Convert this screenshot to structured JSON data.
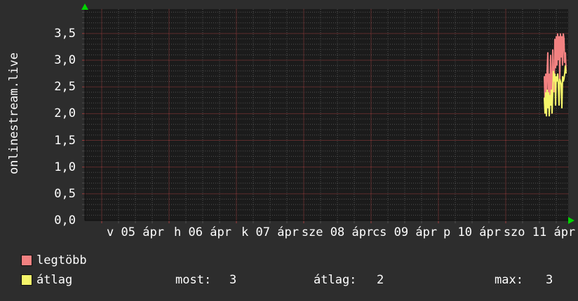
{
  "colors": {
    "background": "#2d2d2d",
    "plot_background": "#1b1b1b",
    "grid_minor": "#4f4f4f",
    "grid_major": "#9e3d3d",
    "axis": "#0d0d0d",
    "arrow": "#00d400",
    "text": "#ffffff",
    "legtobb": "#f28181",
    "atlag": "#f5f56a"
  },
  "legend": [
    {
      "label": "legtöbb",
      "color": "#f28181"
    },
    {
      "label": "átlag",
      "color": "#f5f56a"
    }
  ],
  "stats": {
    "most_label": "most:",
    "most_value": "3",
    "atlag_label": "átlag:",
    "atlag_value": "2",
    "max_label": "max:",
    "max_value": "3"
  },
  "chart_data": {
    "type": "line",
    "title": "onlinestream.live",
    "ylabel": "onlinestream.live",
    "xlabel": "",
    "ylim": [
      0,
      3.95
    ],
    "grid": "dotted, minor every 0.1 (gray) / major every 0.5 (red); x minor every 6h, major every day",
    "legend_position": "bottom-left",
    "y_ticks": [
      {
        "value": 0.0,
        "label": "0,0"
      },
      {
        "value": 0.5,
        "label": "0,5"
      },
      {
        "value": 1.0,
        "label": "1,0"
      },
      {
        "value": 1.5,
        "label": "1,5"
      },
      {
        "value": 2.0,
        "label": "2,0"
      },
      {
        "value": 2.5,
        "label": "2,5"
      },
      {
        "value": 3.0,
        "label": "3,0"
      },
      {
        "value": 3.5,
        "label": "3,5"
      }
    ],
    "x_ticks": [
      {
        "label": "v 05 ápr"
      },
      {
        "label": "h 06 ápr"
      },
      {
        "label": "k 07 ápr"
      },
      {
        "label": "sze 08 ápr"
      },
      {
        "label": "cs 09 ápr"
      },
      {
        "label": "p 10 ápr"
      },
      {
        "label": "szo 11 ápr"
      }
    ],
    "series": [
      {
        "name": "legtöbb",
        "color": "#f28181",
        "points": [
          [
            776,
            2.7
          ],
          [
            777,
            2.2
          ],
          [
            778,
            2.75
          ],
          [
            779,
            2.25
          ],
          [
            780,
            2.8
          ],
          [
            781,
            3.15
          ],
          [
            782,
            2.3
          ],
          [
            783,
            2.75
          ],
          [
            784,
            2.2
          ],
          [
            785,
            3.1
          ],
          [
            786,
            2.45
          ],
          [
            787,
            2.3
          ],
          [
            788,
            3.2
          ],
          [
            789,
            2.5
          ],
          [
            790,
            2.4
          ],
          [
            791,
            3.4
          ],
          [
            792,
            2.85
          ],
          [
            793,
            3.45
          ],
          [
            794,
            2.9
          ],
          [
            795,
            3.5
          ],
          [
            796,
            3.0
          ],
          [
            797,
            3.45
          ],
          [
            798,
            2.6
          ],
          [
            799,
            3.5
          ],
          [
            800,
            3.05
          ],
          [
            801,
            3.45
          ],
          [
            802,
            2.9
          ],
          [
            803,
            3.5
          ],
          [
            804,
            3.4
          ],
          [
            805,
            2.95
          ],
          [
            806,
            3.15
          ],
          [
            807,
            2.8
          ]
        ]
      },
      {
        "name": "átlag",
        "color": "#f5f56a",
        "points": [
          [
            776,
            2.3
          ],
          [
            777,
            2.0
          ],
          [
            778,
            2.4
          ],
          [
            779,
            1.95
          ],
          [
            780,
            2.45
          ],
          [
            781,
            2.1
          ],
          [
            782,
            2.4
          ],
          [
            783,
            1.95
          ],
          [
            784,
            2.35
          ],
          [
            785,
            2.15
          ],
          [
            786,
            2.45
          ],
          [
            787,
            2.0
          ],
          [
            788,
            2.4
          ],
          [
            789,
            2.8
          ],
          [
            790,
            2.6
          ],
          [
            791,
            2.75
          ],
          [
            792,
            2.15
          ],
          [
            793,
            2.7
          ],
          [
            794,
            2.6
          ],
          [
            795,
            2.75
          ],
          [
            796,
            2.55
          ],
          [
            797,
            2.15
          ],
          [
            798,
            2.65
          ],
          [
            799,
            2.6
          ],
          [
            800,
            2.55
          ],
          [
            801,
            2.1
          ],
          [
            802,
            2.7
          ],
          [
            803,
            2.6
          ],
          [
            804,
            2.65
          ],
          [
            805,
            2.75
          ],
          [
            806,
            2.9
          ],
          [
            807,
            2.75
          ]
        ]
      }
    ],
    "stats": {
      "most": 3,
      "átlag": 2,
      "max": 3
    }
  }
}
